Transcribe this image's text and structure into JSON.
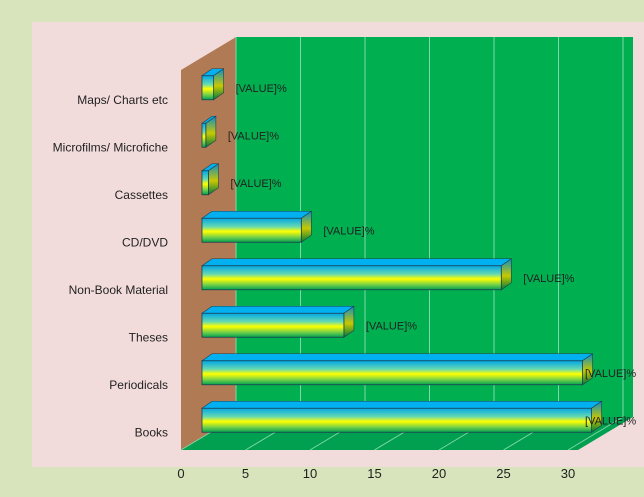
{
  "chart_data": {
    "type": "bar",
    "orientation": "horizontal",
    "style": "3d",
    "categories": [
      "Books",
      "Periodicals",
      "Theses",
      "Non-Book Material",
      "CD/DVD",
      "Cassettes",
      "Microfilms/ Microfiche",
      "Maps/ Charts etc"
    ],
    "values": [
      30.2,
      29.5,
      11,
      23.2,
      7.7,
      0.5,
      0.3,
      0.9
    ],
    "data_labels": [
      "[VALUE]%",
      "[VALUE]%",
      "[VALUE]%",
      "[VALUE]%",
      "[VALUE]%",
      "[VALUE]%",
      "[VALUE]%",
      "[VALUE]%"
    ],
    "xlim": [
      0,
      30
    ],
    "xticks": [
      "0",
      "5",
      "10",
      "15",
      "20",
      "25",
      "30"
    ],
    "grid": true,
    "colors": {
      "outer_background": "#d8e4bc",
      "chart_background": "#f2dcdb",
      "back_wall": "#00b050",
      "side_wall": "#b07a55",
      "floor": "#00a050",
      "bar_top": "#00b0f0",
      "bar_mid": "#ffff00",
      "bar_edge": "#00b050",
      "bar_depth": "#1f8fb0"
    }
  }
}
